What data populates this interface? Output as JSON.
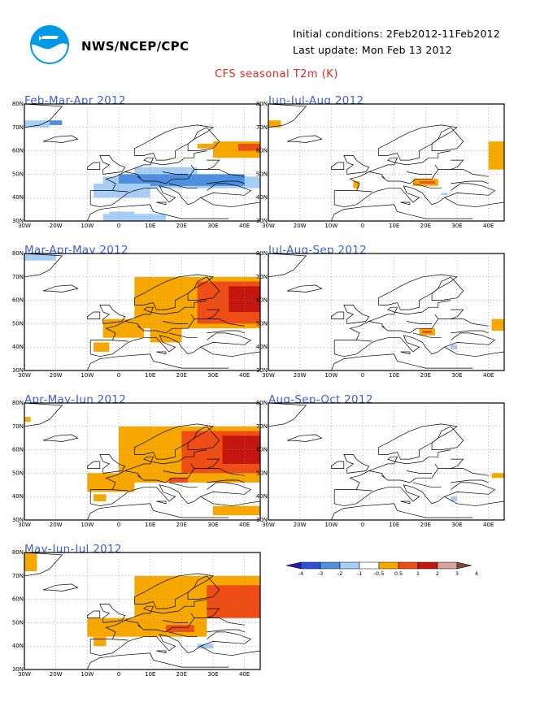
{
  "header": {
    "agency": "NWS/NCEP/CPC",
    "initial_conditions": "Initial conditions: 2Feb2012-11Feb2012",
    "last_update": "Last update: Mon Feb 13 2012",
    "title": "CFS seasonal T2m (K)"
  },
  "colors": {
    "title": "#e8291f",
    "panel_title": "#3a5fd9",
    "neg1": "#4f8fe0",
    "neg05": "#a6cdf6",
    "pos05": "#f7a800",
    "pos1": "#ee4e16",
    "pos2": "#c2160e"
  },
  "axes": {
    "lat_ticks": [
      "80N",
      "70N",
      "60N",
      "50N",
      "40N",
      "30N"
    ],
    "lon_ticks": [
      "30W",
      "20W",
      "10W",
      "0",
      "10E",
      "20E",
      "30E",
      "40E"
    ]
  },
  "legend": {
    "labels": [
      "-4",
      "-3",
      "-2",
      "-1",
      "-0.5",
      "0.5",
      "1",
      "2",
      "3",
      "4"
    ],
    "colors": [
      "#2a1fa8",
      "#2f50d0",
      "#4f8fe0",
      "#a6cdf6",
      "#ffffff",
      "#f7a800",
      "#ee4e16",
      "#c2160e",
      "#d7a39b",
      "#7b4a38"
    ]
  },
  "panels": [
    {
      "title": "Feb-Mar-Apr 2012",
      "pattern": "cold"
    },
    {
      "title": "Jun-Jul-Aug 2012",
      "pattern": "warm-weak"
    },
    {
      "title": "Mar-Apr-May 2012",
      "pattern": "warm-strong"
    },
    {
      "title": "Jul-Aug-Sep 2012",
      "pattern": "neutral"
    },
    {
      "title": "Apr-May-Jun 2012",
      "pattern": "warm-strong2"
    },
    {
      "title": "Aug-Sep-Oct 2012",
      "pattern": "neutral2"
    },
    {
      "title": "May-Jun-Jul 2012",
      "pattern": "warm-mid"
    }
  ]
}
